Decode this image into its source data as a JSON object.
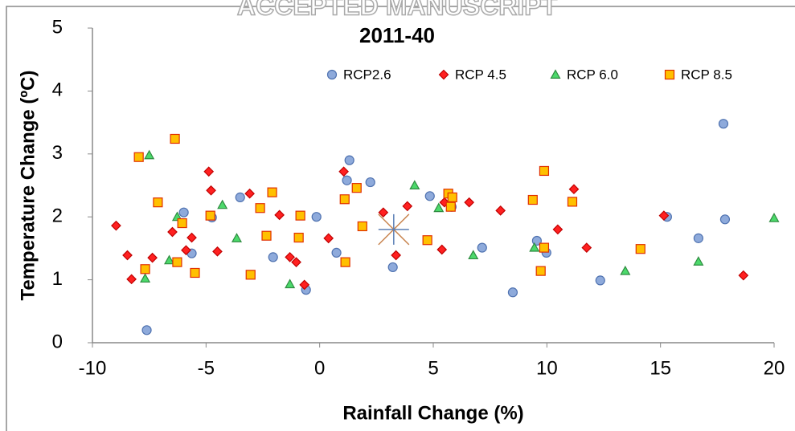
{
  "watermark": "ACCEPTED MANUSCRIPT",
  "chart_data": {
    "type": "scatter",
    "title": "2011-40",
    "x_label": "Rainfall Change (%)",
    "y_label": "Temperature Change (ºC)",
    "xlim": [
      -10,
      20
    ],
    "xticks": [
      -10,
      -5,
      0,
      5,
      10,
      15,
      20
    ],
    "ylim": [
      0,
      5
    ],
    "yticks": [
      0,
      1,
      2,
      3,
      4,
      5
    ],
    "grid": false,
    "legend": "top-right",
    "series": [
      {
        "name": "RCP2.6",
        "marker": "circle",
        "color": "#8eaadb",
        "edge": "#4f72b0",
        "x": [
          -7.61,
          -5.98,
          -5.63,
          -4.74,
          -3.5,
          -2.05,
          -0.6,
          -0.14,
          0.74,
          1.2,
          1.31,
          2.23,
          3.22,
          4.85,
          5.81,
          7.15,
          8.5,
          9.56,
          9.98,
          12.35,
          15.29,
          16.67,
          17.77,
          17.84
        ],
        "values": [
          0.2,
          2.07,
          1.42,
          1.99,
          2.31,
          1.36,
          0.84,
          2.0,
          1.43,
          2.58,
          2.9,
          2.55,
          1.2,
          2.33,
          2.16,
          1.51,
          0.8,
          1.62,
          1.43,
          0.99,
          2.0,
          1.66,
          3.48,
          1.96
        ]
      },
      {
        "name": "RCP 4.5",
        "marker": "diamond",
        "color": "#ff2020",
        "edge": "#c00000",
        "x": [
          -8.96,
          -8.46,
          -8.28,
          -7.36,
          -6.48,
          -5.88,
          -5.63,
          -4.88,
          -4.78,
          -4.5,
          -3.08,
          -1.77,
          -1.31,
          -1.03,
          -0.67,
          0.39,
          1.06,
          2.8,
          3.36,
          3.86,
          5.38,
          5.49,
          6.58,
          7.96,
          10.48,
          11.19,
          11.75,
          15.15,
          18.65
        ],
        "values": [
          1.86,
          1.39,
          1.01,
          1.35,
          1.76,
          1.47,
          1.67,
          2.72,
          2.42,
          1.45,
          2.37,
          2.03,
          1.36,
          1.28,
          0.92,
          1.66,
          2.72,
          2.07,
          1.39,
          2.17,
          1.48,
          2.23,
          2.23,
          2.1,
          1.8,
          2.44,
          1.51,
          2.02,
          1.07
        ]
      },
      {
        "name": "RCP 6.0",
        "marker": "triangle",
        "color": "#4cd96b",
        "edge": "#2e8b40",
        "x": [
          -7.5,
          -7.68,
          -6.62,
          -6.27,
          -4.28,
          -3.65,
          -1.31,
          4.18,
          5.24,
          6.76,
          9.45,
          13.45,
          16.67,
          20.0
        ],
        "values": [
          2.98,
          1.02,
          1.31,
          2.0,
          2.19,
          1.66,
          0.93,
          2.5,
          2.14,
          1.39,
          1.51,
          1.14,
          1.29,
          1.98
        ]
      },
      {
        "name": "RCP 8.5",
        "marker": "square",
        "color": "#ffc000",
        "edge": "#e03000",
        "x": [
          -7.96,
          -7.68,
          -7.12,
          -6.37,
          -6.27,
          -6.05,
          -5.49,
          -4.81,
          -3.04,
          -2.62,
          -2.34,
          -2.09,
          -0.92,
          -0.85,
          1.1,
          1.13,
          1.63,
          1.88,
          4.74,
          5.66,
          5.84,
          5.77,
          9.38,
          9.73,
          9.88,
          9.88,
          11.12,
          14.12
        ],
        "values": [
          2.95,
          1.17,
          2.23,
          3.24,
          1.28,
          1.9,
          1.11,
          2.02,
          1.08,
          2.14,
          1.7,
          2.39,
          1.67,
          2.02,
          2.28,
          1.28,
          2.46,
          1.85,
          1.63,
          2.37,
          2.31,
          2.16,
          2.27,
          1.14,
          2.73,
          1.51,
          2.24,
          1.49
        ]
      }
    ],
    "centroid": {
      "x": 3.26,
      "y": 1.8,
      "color": "#c8844e"
    }
  }
}
